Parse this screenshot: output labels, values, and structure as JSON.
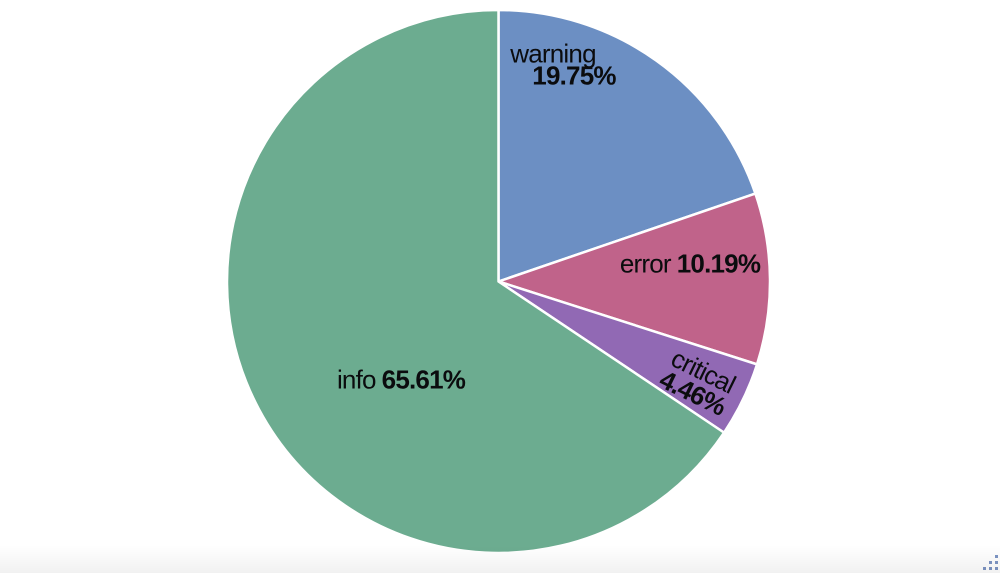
{
  "chart_data": {
    "type": "pie",
    "title": "",
    "legend_position": "none",
    "label_position": "inside",
    "label_format": "name percent",
    "direction": "clockwise",
    "start_angle": "top",
    "slices": [
      {
        "name": "warning",
        "value": 19.75,
        "pct_label": "19.75%",
        "color": "#6C8FC3"
      },
      {
        "name": "error",
        "value": 10.19,
        "pct_label": "10.19%",
        "color": "#C0638A"
      },
      {
        "name": "critical",
        "value": 4.46,
        "pct_label": "4.46%",
        "color": "#9169B4"
      },
      {
        "name": "info",
        "value": 65.61,
        "pct_label": "65.61%",
        "color": "#6CAC90"
      }
    ],
    "separator_color": "#FFFFFF",
    "text_color": "#0B0C0E",
    "background_color": "#FFFFFF"
  },
  "ui": {
    "resize_handle_icon": "resize-grip-dots",
    "resize_handle_color": "#5D7AB5"
  }
}
